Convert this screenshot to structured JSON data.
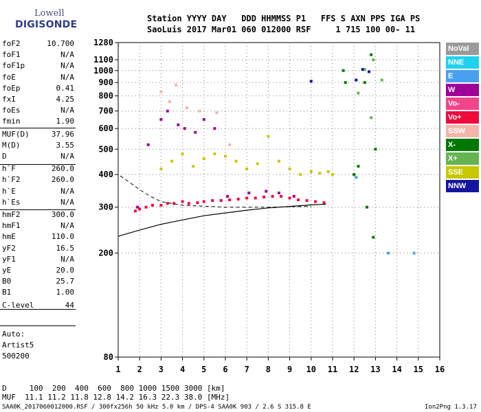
{
  "logo": {
    "top": "Lowell",
    "main": "DIGISONDE"
  },
  "header": {
    "labels_row": "Station YYYY DAY   DDD HHMMSS P1   FFS S AXN PPS IGA PS",
    "values_row": "SaoLuis 2017 Mar01 060 012000 RSF     1 715 100 00- 11"
  },
  "parameters": [
    {
      "label": "foF2",
      "value": "10.700"
    },
    {
      "label": "foF1",
      "value": "N/A"
    },
    {
      "label": "foF1p",
      "value": "N/A"
    },
    {
      "label": "foE",
      "value": "N/A"
    },
    {
      "label": "foEp",
      "value": "0.41"
    },
    {
      "label": "fxI",
      "value": "4.25"
    },
    {
      "label": "foEs",
      "value": "N/A"
    },
    {
      "label": "fmin",
      "value": "1.90"
    },
    {
      "label": "MUF(D)",
      "value": "37.96"
    },
    {
      "label": "M(D)",
      "value": "3.55"
    },
    {
      "label": "D",
      "value": "N/A"
    },
    {
      "label": "h`F",
      "value": "260.0"
    },
    {
      "label": "h`F2",
      "value": "260.0"
    },
    {
      "label": "h`E",
      "value": "N/A"
    },
    {
      "label": "h`Es",
      "value": "N/A"
    },
    {
      "label": "hmF2",
      "value": "300.0"
    },
    {
      "label": "hmF1",
      "value": "N/A"
    },
    {
      "label": "hmE",
      "value": "110.0"
    },
    {
      "label": "yF2",
      "value": "16.5"
    },
    {
      "label": "yF1",
      "value": "N/A"
    },
    {
      "label": "yE",
      "value": "20.0"
    },
    {
      "label": "B0",
      "value": "25.7"
    },
    {
      "label": "B1",
      "value": "1.00"
    },
    {
      "label": "C-level",
      "value": "44"
    }
  ],
  "autoscaling": {
    "line1": "Auto:",
    "line2": "Artist5",
    "line3": "500200"
  },
  "legend": [
    {
      "label": "NoVal",
      "color": "#9a9a9a"
    },
    {
      "label": "NNE",
      "color": "#1ed2f0"
    },
    {
      "label": "E",
      "color": "#4aa0f0"
    },
    {
      "label": "W",
      "color": "#a0009a"
    },
    {
      "label": "Vo-",
      "color": "#f0468c"
    },
    {
      "label": "Vo+",
      "color": "#f00a3c"
    },
    {
      "label": "SSW",
      "color": "#f5b4aa"
    },
    {
      "label": "X-",
      "color": "#007800"
    },
    {
      "label": "X+",
      "color": "#64b450"
    },
    {
      "label": "SSE",
      "color": "#c8c800"
    },
    {
      "label": "NNW",
      "color": "#1414a0"
    }
  ],
  "footer": {
    "distance_row": "D     100  200  400  600  800 1000 1500 3000 [km]",
    "muf_row": "MUF  11.1 11.2 11.8 12.8 14.2 16.3 22.3 38.0 [MHz]",
    "file_info": "SAA0K_2017060012000.RSF / 300fx256h 50 kHz 5.0 km / DPS-4 SAA0K 903 / 2.6 S 315.8 E",
    "version": "Ion2Png 1.3.17"
  },
  "chart_data": {
    "type": "scatter",
    "title": "",
    "xlabel": "",
    "ylabel": "",
    "xlim": [
      1,
      16
    ],
    "ylim": [
      80,
      1280
    ],
    "x_ticks": [
      1,
      2,
      3,
      4,
      5,
      6,
      7,
      8,
      9,
      10,
      11,
      12,
      13,
      14,
      15,
      16
    ],
    "y_ticks": [
      80,
      200,
      300,
      400,
      500,
      600,
      700,
      800,
      900,
      1000,
      1100,
      1280
    ],
    "y_scale": "log",
    "series": [
      {
        "name": "Vo+",
        "points": [
          [
            1.8,
            290
          ],
          [
            2.0,
            295
          ],
          [
            2.3,
            300
          ],
          [
            2.6,
            305
          ],
          [
            3.0,
            305
          ],
          [
            3.3,
            310
          ],
          [
            3.6,
            310
          ],
          [
            4.0,
            315
          ],
          [
            4.3,
            310
          ],
          [
            4.7,
            312
          ],
          [
            5.0,
            315
          ],
          [
            5.4,
            318
          ],
          [
            5.8,
            318
          ],
          [
            6.2,
            320
          ],
          [
            6.6,
            322
          ],
          [
            7.0,
            325
          ],
          [
            7.4,
            325
          ],
          [
            7.8,
            328
          ],
          [
            8.2,
            330
          ],
          [
            8.6,
            330
          ],
          [
            9.0,
            325
          ],
          [
            9.4,
            320
          ],
          [
            9.8,
            318
          ],
          [
            10.2,
            315
          ],
          [
            10.6,
            312
          ]
        ]
      },
      {
        "name": "W",
        "points": [
          [
            1.9,
            300
          ],
          [
            2.4,
            520
          ],
          [
            3.0,
            650
          ],
          [
            3.3,
            700
          ],
          [
            3.8,
            620
          ],
          [
            4.1,
            600
          ],
          [
            4.6,
            580
          ],
          [
            5.0,
            650
          ],
          [
            5.5,
            600
          ],
          [
            6.1,
            330
          ],
          [
            7.1,
            340
          ],
          [
            7.9,
            345
          ],
          [
            8.5,
            340
          ],
          [
            9.2,
            330
          ]
        ]
      },
      {
        "name": "SSE",
        "points": [
          [
            3.0,
            420
          ],
          [
            3.5,
            450
          ],
          [
            4.0,
            480
          ],
          [
            4.5,
            430
          ],
          [
            5.0,
            460
          ],
          [
            5.5,
            480
          ],
          [
            6.0,
            470
          ],
          [
            6.5,
            450
          ],
          [
            7.0,
            420
          ],
          [
            7.5,
            440
          ],
          [
            8.0,
            560
          ],
          [
            8.5,
            450
          ],
          [
            9.0,
            420
          ],
          [
            9.5,
            400
          ],
          [
            10.0,
            410
          ],
          [
            10.4,
            405
          ],
          [
            10.8,
            410
          ],
          [
            11.0,
            400
          ]
        ]
      },
      {
        "name": "SSW",
        "points": [
          [
            3.0,
            830
          ],
          [
            3.4,
            760
          ],
          [
            3.7,
            880
          ],
          [
            4.2,
            720
          ],
          [
            4.8,
            700
          ],
          [
            5.6,
            690
          ],
          [
            6.2,
            520
          ]
        ]
      },
      {
        "name": "X-",
        "points": [
          [
            11.5,
            1000
          ],
          [
            11.6,
            900
          ],
          [
            12.0,
            400
          ],
          [
            12.2,
            430
          ],
          [
            12.5,
            900
          ],
          [
            12.8,
            1150
          ],
          [
            13.0,
            500
          ],
          [
            12.6,
            300
          ],
          [
            12.9,
            230
          ]
        ]
      },
      {
        "name": "X+",
        "points": [
          [
            12.5,
            1010
          ],
          [
            12.9,
            1100
          ],
          [
            13.3,
            920
          ],
          [
            12.2,
            820
          ],
          [
            12.8,
            660
          ]
        ]
      },
      {
        "name": "NNW",
        "points": [
          [
            10.0,
            910
          ],
          [
            12.7,
            990
          ],
          [
            12.4,
            1010
          ],
          [
            12.1,
            920
          ]
        ]
      },
      {
        "name": "E",
        "points": [
          [
            12.1,
            390
          ],
          [
            13.6,
            200
          ],
          [
            14.8,
            200
          ]
        ]
      }
    ],
    "trace_curve": {
      "name": "virtual-height-trace",
      "points": [
        [
          1.0,
          232
        ],
        [
          2.0,
          245
        ],
        [
          3.0,
          258
        ],
        [
          4.0,
          268
        ],
        [
          5.0,
          278
        ],
        [
          6.0,
          285
        ],
        [
          7.0,
          292
        ],
        [
          8.0,
          298
        ],
        [
          9.0,
          302
        ],
        [
          10.0,
          306
        ],
        [
          10.7,
          308
        ]
      ]
    },
    "dash_curve": {
      "name": "profile-dash",
      "points": [
        [
          1.1,
          395
        ],
        [
          1.5,
          375
        ],
        [
          2.0,
          350
        ],
        [
          2.5,
          330
        ],
        [
          3.0,
          315
        ],
        [
          4.0,
          305
        ],
        [
          6.0,
          300
        ],
        [
          8.0,
          300
        ],
        [
          10.0,
          302
        ]
      ]
    }
  }
}
